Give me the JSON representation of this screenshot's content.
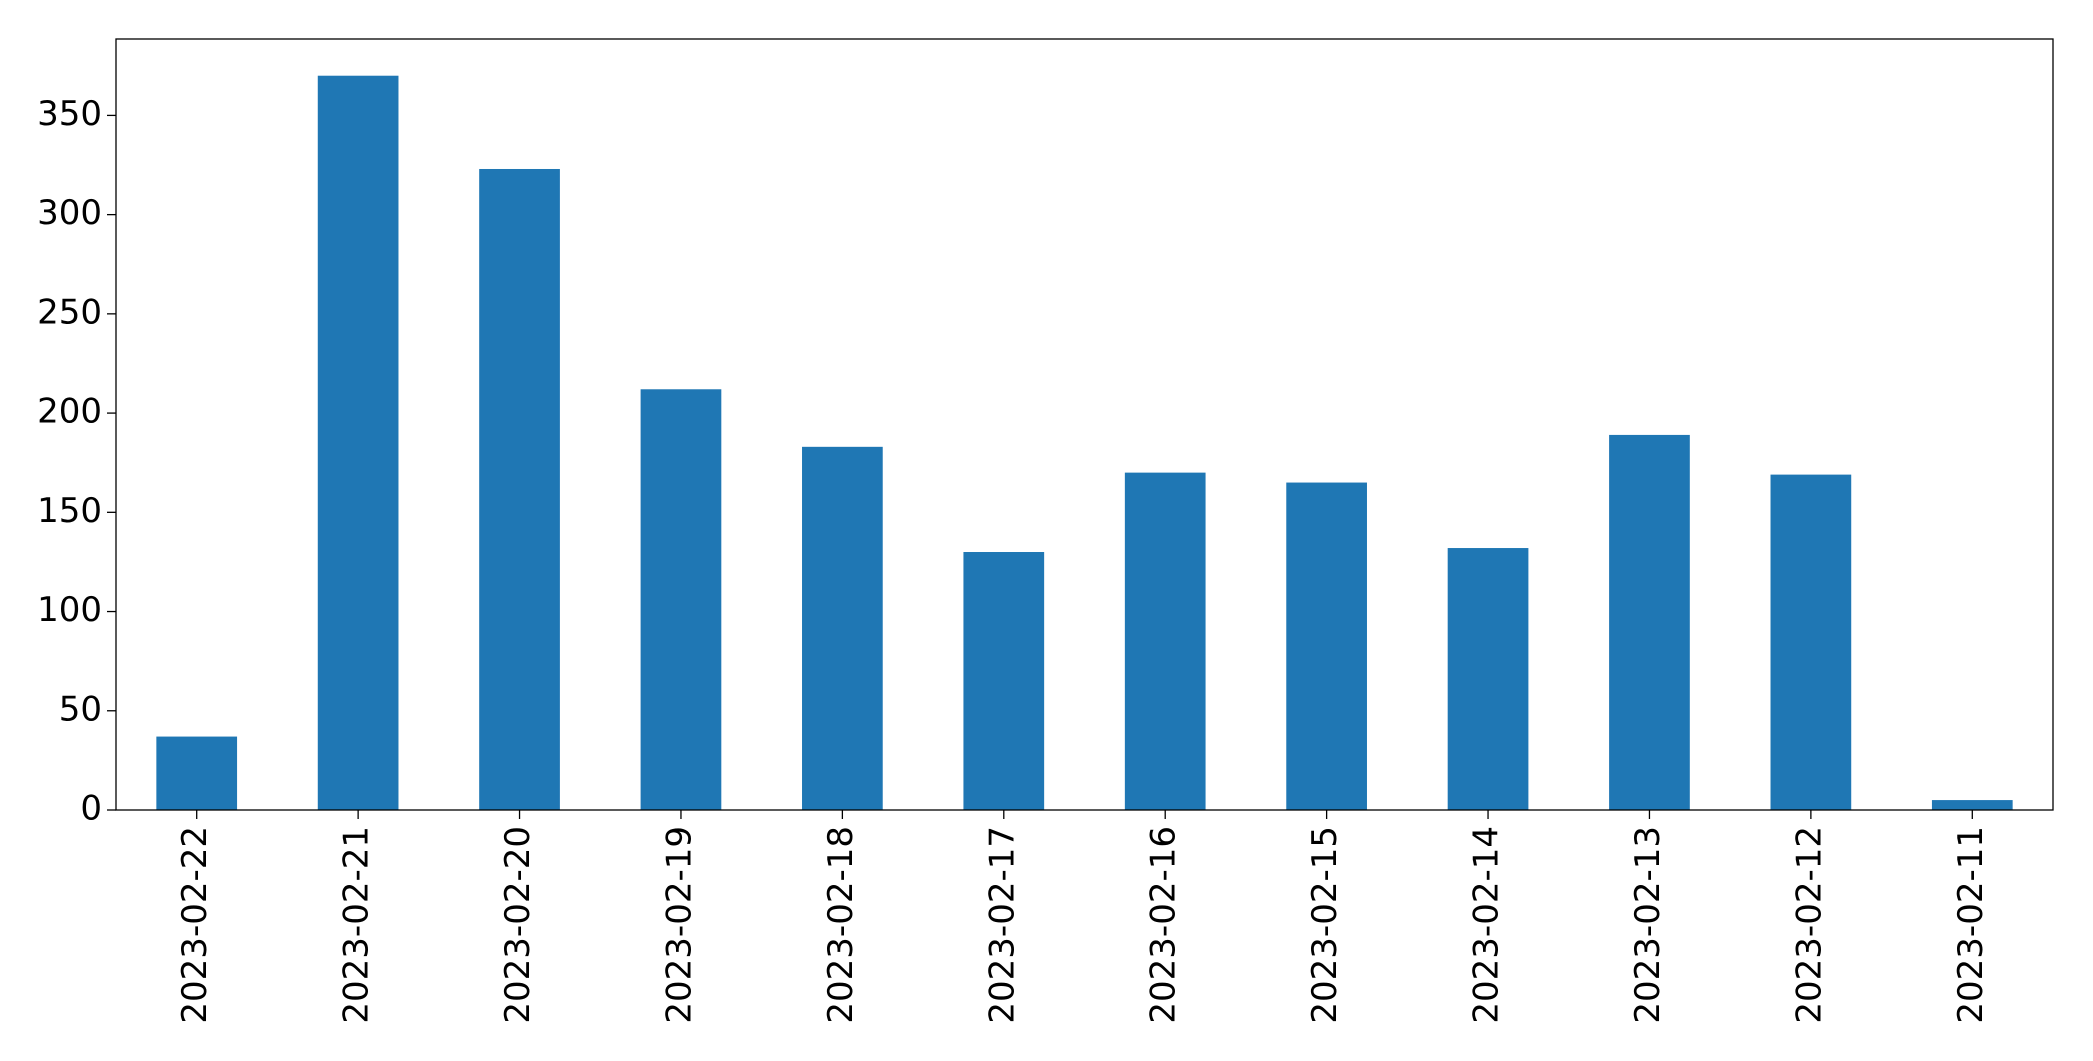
{
  "chart_data": {
    "type": "bar",
    "categories": [
      "2023-02-22",
      "2023-02-21",
      "2023-02-20",
      "2023-02-19",
      "2023-02-18",
      "2023-02-17",
      "2023-02-16",
      "2023-02-15",
      "2023-02-14",
      "2023-02-13",
      "2023-02-12",
      "2023-02-11"
    ],
    "values": [
      37,
      370,
      323,
      212,
      183,
      130,
      170,
      165,
      132,
      189,
      169,
      5
    ],
    "color": "#1f77b4",
    "ylim": [
      0,
      388.5
    ],
    "yticks": [
      0,
      50,
      100,
      150,
      200,
      250,
      300,
      350
    ],
    "grid": false
  }
}
